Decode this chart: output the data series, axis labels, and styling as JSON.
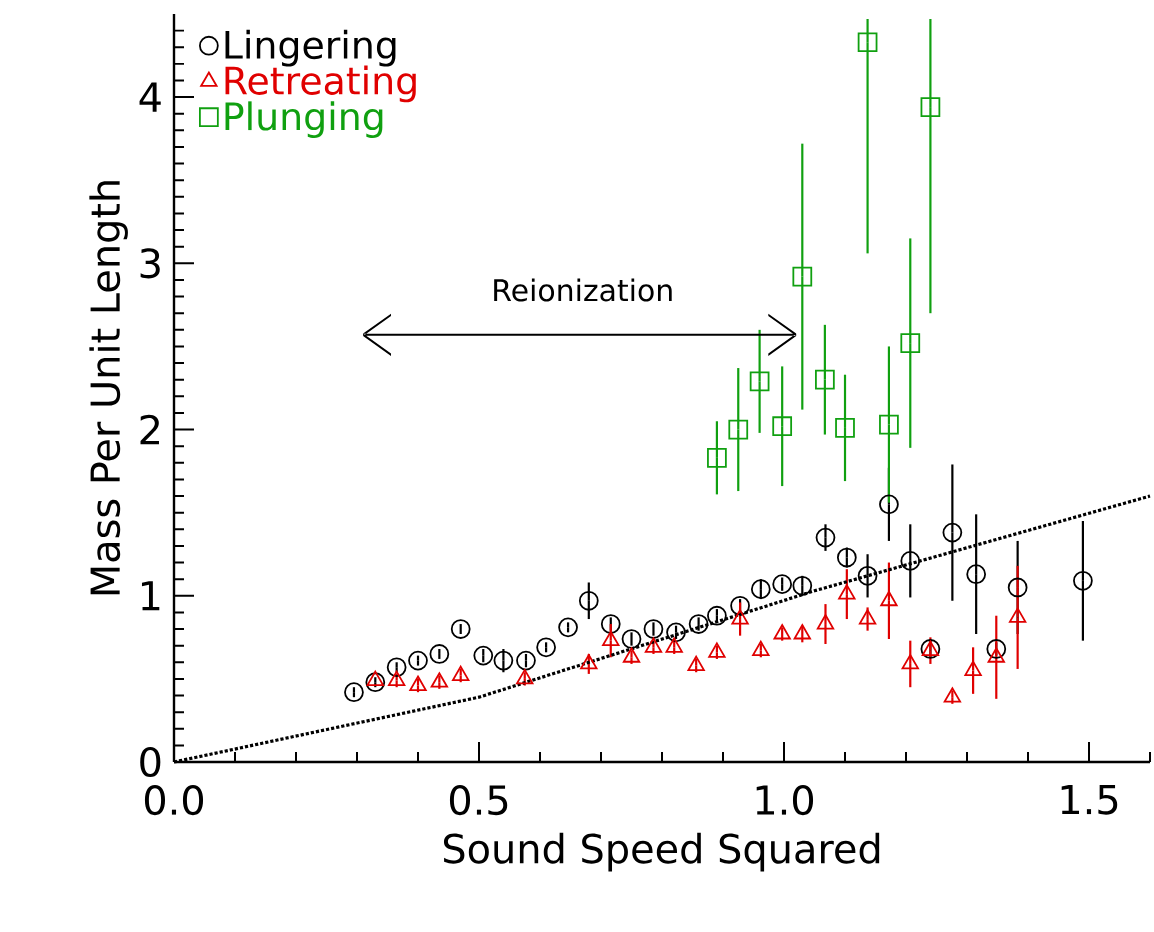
{
  "chart_data": {
    "type": "scatter",
    "xlabel": "Sound Speed Squared",
    "ylabel": "Mass Per Unit Length",
    "xlim": [
      0,
      1.6
    ],
    "ylim": [
      0,
      4.5
    ],
    "xticks": [
      {
        "value": 0,
        "label": "0.0"
      },
      {
        "value": 0.5,
        "label": "0.5"
      },
      {
        "value": 1,
        "label": "1.0"
      },
      {
        "value": 1.5,
        "label": "1.5"
      },
      {
        "value": 0.1,
        "label": null
      },
      {
        "value": 0.2,
        "label": null
      },
      {
        "value": 0.3,
        "label": null
      },
      {
        "value": 0.4,
        "label": null
      },
      {
        "value": 0.6,
        "label": null
      },
      {
        "value": 0.7,
        "label": null
      },
      {
        "value": 0.8,
        "label": null
      },
      {
        "value": 0.9,
        "label": null
      },
      {
        "value": 1.1,
        "label": null
      },
      {
        "value": 1.2,
        "label": null
      },
      {
        "value": 1.3,
        "label": null
      },
      {
        "value": 1.4,
        "label": null
      },
      {
        "value": 1.6,
        "label": null
      }
    ],
    "yticks": [
      0,
      1,
      2,
      3,
      4,
      {
        "value": 0.1,
        "label": null
      },
      {
        "value": 0.2,
        "label": null
      },
      {
        "value": 0.3,
        "label": null
      },
      {
        "value": 0.4,
        "label": null
      },
      {
        "value": 0.5,
        "label": null
      },
      {
        "value": 0.6,
        "label": null
      },
      {
        "value": 0.7,
        "label": null
      },
      {
        "value": 0.8,
        "label": null
      },
      {
        "value": 0.9,
        "label": null
      },
      {
        "value": 1.1,
        "label": null
      },
      {
        "value": 1.2,
        "label": null
      },
      {
        "value": 1.3,
        "label": null
      },
      {
        "value": 1.4,
        "label": null
      },
      {
        "value": 1.5,
        "label": null
      },
      {
        "value": 1.6,
        "label": null
      },
      {
        "value": 1.7,
        "label": null
      },
      {
        "value": 1.8,
        "label": null
      },
      {
        "value": 1.9,
        "label": null
      },
      {
        "value": 2.1,
        "label": null
      },
      {
        "value": 2.2,
        "label": null
      },
      {
        "value": 2.3,
        "label": null
      },
      {
        "value": 2.4,
        "label": null
      },
      {
        "value": 2.5,
        "label": null
      },
      {
        "value": 2.6,
        "label": null
      },
      {
        "value": 2.7,
        "label": null
      },
      {
        "value": 2.8,
        "label": null
      },
      {
        "value": 2.9,
        "label": null
      },
      {
        "value": 3.1,
        "label": null
      },
      {
        "value": 3.2,
        "label": null
      },
      {
        "value": 3.3,
        "label": null
      },
      {
        "value": 3.4,
        "label": null
      },
      {
        "value": 3.5,
        "label": null
      },
      {
        "value": 3.6,
        "label": null
      },
      {
        "value": 3.7,
        "label": null
      },
      {
        "value": 3.8,
        "label": null
      },
      {
        "value": 3.9,
        "label": null
      },
      {
        "value": 4.1,
        "label": null
      },
      {
        "value": 4.2,
        "label": null
      },
      {
        "value": 4.3,
        "label": null
      },
      {
        "value": 4.4,
        "label": null
      }
    ],
    "legend": "top left",
    "grid": false,
    "annotations": [
      "Reionization"
    ],
    "series": [
      {
        "name": "Lingering",
        "color": "#000000",
        "marker": "circle",
        "x": [
          0.295,
          0.33,
          0.365,
          0.4,
          0.435,
          0.47,
          0.507,
          0.54,
          0.577,
          0.61,
          0.646,
          0.68,
          0.716,
          0.75,
          0.786,
          0.823,
          0.86,
          0.89,
          0.928,
          0.962,
          0.997,
          1.03,
          1.068,
          1.103,
          1.137,
          1.172,
          1.207,
          1.24,
          1.276,
          1.315,
          1.348,
          1.383,
          1.49
        ],
        "values": [
          0.42,
          0.48,
          0.57,
          0.61,
          0.65,
          0.8,
          0.64,
          0.61,
          0.61,
          0.69,
          0.81,
          0.97,
          0.83,
          0.74,
          0.8,
          0.78,
          0.83,
          0.88,
          0.94,
          1.04,
          1.07,
          1.06,
          1.35,
          1.23,
          1.12,
          1.55,
          1.21,
          0.68,
          1.38,
          1.13,
          0.68,
          1.05,
          1.09
        ],
        "errors": [
          0.03,
          0.03,
          0.03,
          0.03,
          0.03,
          0.03,
          0.04,
          0.07,
          0.04,
          0.03,
          0.03,
          0.11,
          0.04,
          0.04,
          0.04,
          0.04,
          0.04,
          0.04,
          0.04,
          0.06,
          0.04,
          0.06,
          0.08,
          0.06,
          0.13,
          0.22,
          0.22,
          0.05,
          0.41,
          0.36,
          0.04,
          0.28,
          0.36
        ]
      },
      {
        "name": "Retreating",
        "color": "#e00000",
        "marker": "triangle",
        "x": [
          0.33,
          0.365,
          0.4,
          0.435,
          0.47,
          0.575,
          0.68,
          0.716,
          0.75,
          0.786,
          0.82,
          0.856,
          0.89,
          0.928,
          0.962,
          0.997,
          1.03,
          1.068,
          1.103,
          1.137,
          1.172,
          1.207,
          1.24,
          1.276,
          1.31,
          1.348,
          1.383
        ],
        "values": [
          0.49,
          0.49,
          0.46,
          0.48,
          0.52,
          0.5,
          0.59,
          0.73,
          0.63,
          0.69,
          0.69,
          0.58,
          0.66,
          0.86,
          0.67,
          0.77,
          0.77,
          0.83,
          1.01,
          0.86,
          0.97,
          0.59,
          0.67,
          0.39,
          0.55,
          0.63,
          0.87
        ],
        "errors": [
          null,
          0.04,
          0.04,
          0.04,
          0.04,
          0.04,
          0.06,
          0.1,
          0.04,
          0.04,
          0.04,
          0.04,
          0.04,
          0.1,
          0.04,
          0.04,
          0.05,
          0.12,
          0.15,
          0.07,
          0.23,
          0.14,
          0.08,
          0.04,
          0.14,
          0.25,
          0.31
        ]
      },
      {
        "name": "Plunging",
        "color": "#10a010",
        "marker": "square",
        "x": [
          0.89,
          0.925,
          0.96,
          0.997,
          1.03,
          1.067,
          1.1,
          1.137,
          1.172,
          1.207,
          1.24
        ],
        "values": [
          1.83,
          2.0,
          2.29,
          2.02,
          2.92,
          2.3,
          2.01,
          4.33,
          2.03,
          2.52,
          3.94
        ],
        "errors": [
          0.22,
          0.37,
          0.31,
          0.36,
          0.8,
          0.33,
          0.32,
          [
            3.06,
            4.47
          ],
          0.47,
          0.63,
          [
            2.7,
            4.47
          ]
        ]
      },
      {
        "type": "line",
        "color": "#000000",
        "marker": "none",
        "line_style": "dotted",
        "x": [
          0,
          0.5,
          1.05,
          1.6
        ],
        "values": [
          0,
          0.39,
          1.03,
          1.6
        ]
      }
    ]
  }
}
